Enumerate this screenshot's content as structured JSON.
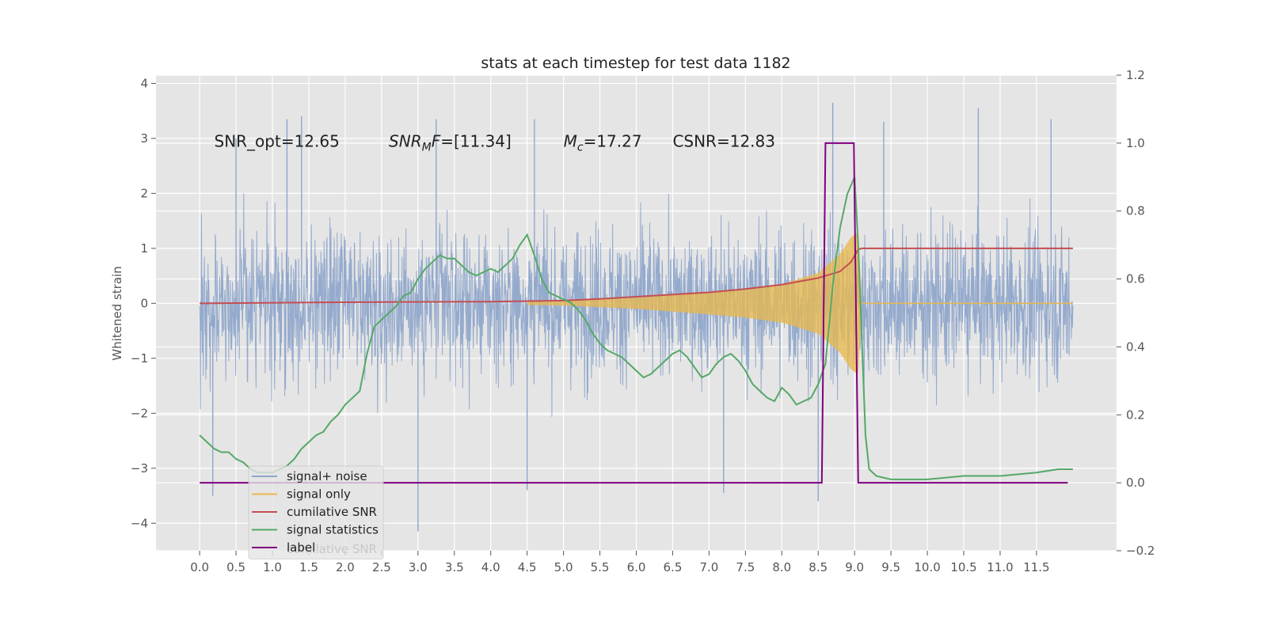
{
  "chart_data": {
    "type": "line",
    "title": "stats at each timestep for test data 1182",
    "ylabel": "Whitened strain",
    "xlim": [
      -0.6,
      12.6
    ],
    "ylim": [
      -4.5,
      4.15
    ],
    "y2lim": [
      -0.2,
      1.2
    ],
    "grid": true,
    "legend_position": "lower-left",
    "x_ticks": [
      0.0,
      0.5,
      1.0,
      1.5,
      2.0,
      2.5,
      3.0,
      3.5,
      4.0,
      4.5,
      5.0,
      5.5,
      6.0,
      6.5,
      7.0,
      7.5,
      8.0,
      8.5,
      9.0,
      9.5,
      10.0,
      10.5,
      11.0,
      11.5
    ],
    "x_tick_labels": [
      "0.0",
      "0.5",
      "1.0",
      "1.5",
      "2.0",
      "2.5",
      "3.0",
      "3.5",
      "4.0",
      "4.5",
      "5.0",
      "5.5",
      "6.0",
      "6.5",
      "7.0",
      "7.5",
      "8.0",
      "8.5",
      "9.0",
      "9.5",
      "10.0",
      "10.5",
      "11.0",
      "11.5"
    ],
    "y_ticks": [
      -4,
      -3,
      -2,
      -1,
      0,
      1,
      2,
      3,
      4
    ],
    "y_tick_labels": [
      "−4",
      "−3",
      "−2",
      "−1",
      "0",
      "1",
      "2",
      "3",
      "4"
    ],
    "y2_ticks": [
      -0.2,
      0.0,
      0.2,
      0.4,
      0.6,
      0.8,
      1.0,
      1.2
    ],
    "y2_tick_labels": [
      "−0.2",
      "0.0",
      "0.2",
      "0.4",
      "0.6",
      "0.8",
      "1.0",
      "1.2"
    ],
    "annotations": [
      {
        "id": "snr-opt",
        "text": "SNR_opt=12.65",
        "x": 0.2,
        "y": 2.95
      },
      {
        "id": "snr-mf",
        "text": "SNR_MF=[11.34]",
        "x": 2.6,
        "y": 2.95
      },
      {
        "id": "mc",
        "text": "M_c=17.27",
        "x": 5.0,
        "y": 2.95
      },
      {
        "id": "csnr",
        "text": "CSNR=12.83",
        "x": 6.5,
        "y": 2.95
      }
    ],
    "series": [
      {
        "name": "signal+ noise",
        "color": "#8fa6cb",
        "axis": "left",
        "style": "noise",
        "x_range": [
          0.0,
          12.0
        ],
        "typical_amplitude": 1.7,
        "extremes": [
          {
            "x": 0.18,
            "y": -3.5
          },
          {
            "x": 0.5,
            "y": 3.0
          },
          {
            "x": 1.2,
            "y": 3.35
          },
          {
            "x": 1.4,
            "y": 3.4
          },
          {
            "x": 3.0,
            "y": -4.15
          },
          {
            "x": 3.25,
            "y": 3.35
          },
          {
            "x": 4.5,
            "y": -3.4
          },
          {
            "x": 4.6,
            "y": 3.35
          },
          {
            "x": 7.2,
            "y": -3.45
          },
          {
            "x": 8.5,
            "y": -3.6
          },
          {
            "x": 8.7,
            "y": 3.65
          },
          {
            "x": 9.4,
            "y": 3.3
          },
          {
            "x": 10.7,
            "y": 3.55
          },
          {
            "x": 11.7,
            "y": 3.35
          }
        ]
      },
      {
        "name": "signal only",
        "color": "#e8b84e",
        "axis": "left",
        "style": "chirp",
        "envelope": [
          {
            "x": 0.0,
            "y": 0.0
          },
          {
            "x": 4.0,
            "y": 0.02
          },
          {
            "x": 5.0,
            "y": 0.04
          },
          {
            "x": 6.0,
            "y": 0.1
          },
          {
            "x": 6.5,
            "y": 0.15
          },
          {
            "x": 7.0,
            "y": 0.2
          },
          {
            "x": 7.5,
            "y": 0.26
          },
          {
            "x": 8.0,
            "y": 0.35
          },
          {
            "x": 8.5,
            "y": 0.55
          },
          {
            "x": 8.8,
            "y": 0.9
          },
          {
            "x": 8.95,
            "y": 1.2
          },
          {
            "x": 9.05,
            "y": 1.3
          },
          {
            "x": 9.1,
            "y": 0.0
          },
          {
            "x": 12.0,
            "y": 0.0
          }
        ]
      },
      {
        "name": "cumilative SNR",
        "color": "#c44e52",
        "axis": "left",
        "x": [
          0.0,
          2.0,
          4.0,
          5.0,
          5.5,
          6.0,
          6.5,
          7.0,
          7.5,
          8.0,
          8.5,
          8.8,
          8.95,
          9.05,
          9.1,
          12.0
        ],
        "y": [
          0.0,
          0.02,
          0.03,
          0.05,
          0.08,
          0.12,
          0.16,
          0.2,
          0.26,
          0.34,
          0.46,
          0.58,
          0.75,
          0.98,
          1.0,
          1.0
        ]
      },
      {
        "name": "signal statistics",
        "color": "#55a868",
        "axis": "right",
        "x": [
          0.0,
          0.1,
          0.2,
          0.3,
          0.4,
          0.5,
          0.6,
          0.7,
          0.8,
          0.9,
          1.0,
          1.1,
          1.2,
          1.3,
          1.4,
          1.5,
          1.6,
          1.7,
          1.8,
          1.9,
          2.0,
          2.1,
          2.2,
          2.3,
          2.4,
          2.5,
          2.6,
          2.7,
          2.8,
          2.9,
          3.0,
          3.1,
          3.2,
          3.3,
          3.4,
          3.5,
          3.6,
          3.7,
          3.8,
          3.9,
          4.0,
          4.1,
          4.2,
          4.3,
          4.4,
          4.5,
          4.6,
          4.7,
          4.8,
          4.9,
          5.0,
          5.1,
          5.2,
          5.3,
          5.4,
          5.5,
          5.6,
          5.7,
          5.8,
          5.9,
          6.0,
          6.1,
          6.2,
          6.3,
          6.4,
          6.5,
          6.6,
          6.7,
          6.8,
          6.9,
          7.0,
          7.1,
          7.2,
          7.3,
          7.4,
          7.5,
          7.6,
          7.7,
          7.8,
          7.9,
          8.0,
          8.1,
          8.2,
          8.3,
          8.4,
          8.5,
          8.6,
          8.7,
          8.8,
          8.9,
          9.0,
          9.05,
          9.15,
          9.2,
          9.3,
          9.5,
          10.0,
          10.5,
          11.0,
          11.5,
          11.8,
          12.0
        ],
        "y": [
          0.14,
          0.12,
          0.1,
          0.09,
          0.09,
          0.07,
          0.06,
          0.04,
          0.03,
          0.03,
          0.03,
          0.04,
          0.05,
          0.07,
          0.1,
          0.12,
          0.14,
          0.15,
          0.18,
          0.2,
          0.23,
          0.25,
          0.27,
          0.38,
          0.46,
          0.48,
          0.5,
          0.52,
          0.55,
          0.56,
          0.6,
          0.63,
          0.65,
          0.67,
          0.66,
          0.66,
          0.64,
          0.62,
          0.61,
          0.62,
          0.63,
          0.62,
          0.64,
          0.66,
          0.7,
          0.73,
          0.67,
          0.6,
          0.56,
          0.55,
          0.54,
          0.53,
          0.51,
          0.48,
          0.44,
          0.41,
          0.39,
          0.38,
          0.37,
          0.35,
          0.33,
          0.31,
          0.32,
          0.34,
          0.36,
          0.38,
          0.39,
          0.37,
          0.34,
          0.31,
          0.32,
          0.35,
          0.37,
          0.38,
          0.36,
          0.33,
          0.29,
          0.27,
          0.25,
          0.24,
          0.28,
          0.26,
          0.23,
          0.24,
          0.25,
          0.29,
          0.35,
          0.58,
          0.75,
          0.85,
          0.9,
          0.7,
          0.14,
          0.04,
          0.02,
          0.01,
          0.01,
          0.02,
          0.02,
          0.03,
          0.04,
          0.04
        ]
      },
      {
        "name": "label",
        "color": "#800080",
        "axis": "right",
        "x": [
          0.0,
          8.55,
          8.6,
          8.99,
          9.05,
          11.93
        ],
        "y": [
          0.0,
          0.0,
          1.0,
          1.0,
          0.0,
          0.0
        ]
      }
    ],
    "legend_entries": [
      "signal+ noise",
      "signal only",
      "cumilative SNR",
      "signal statistics",
      "label"
    ],
    "legend_ghost_text": "cumilative SNR"
  }
}
